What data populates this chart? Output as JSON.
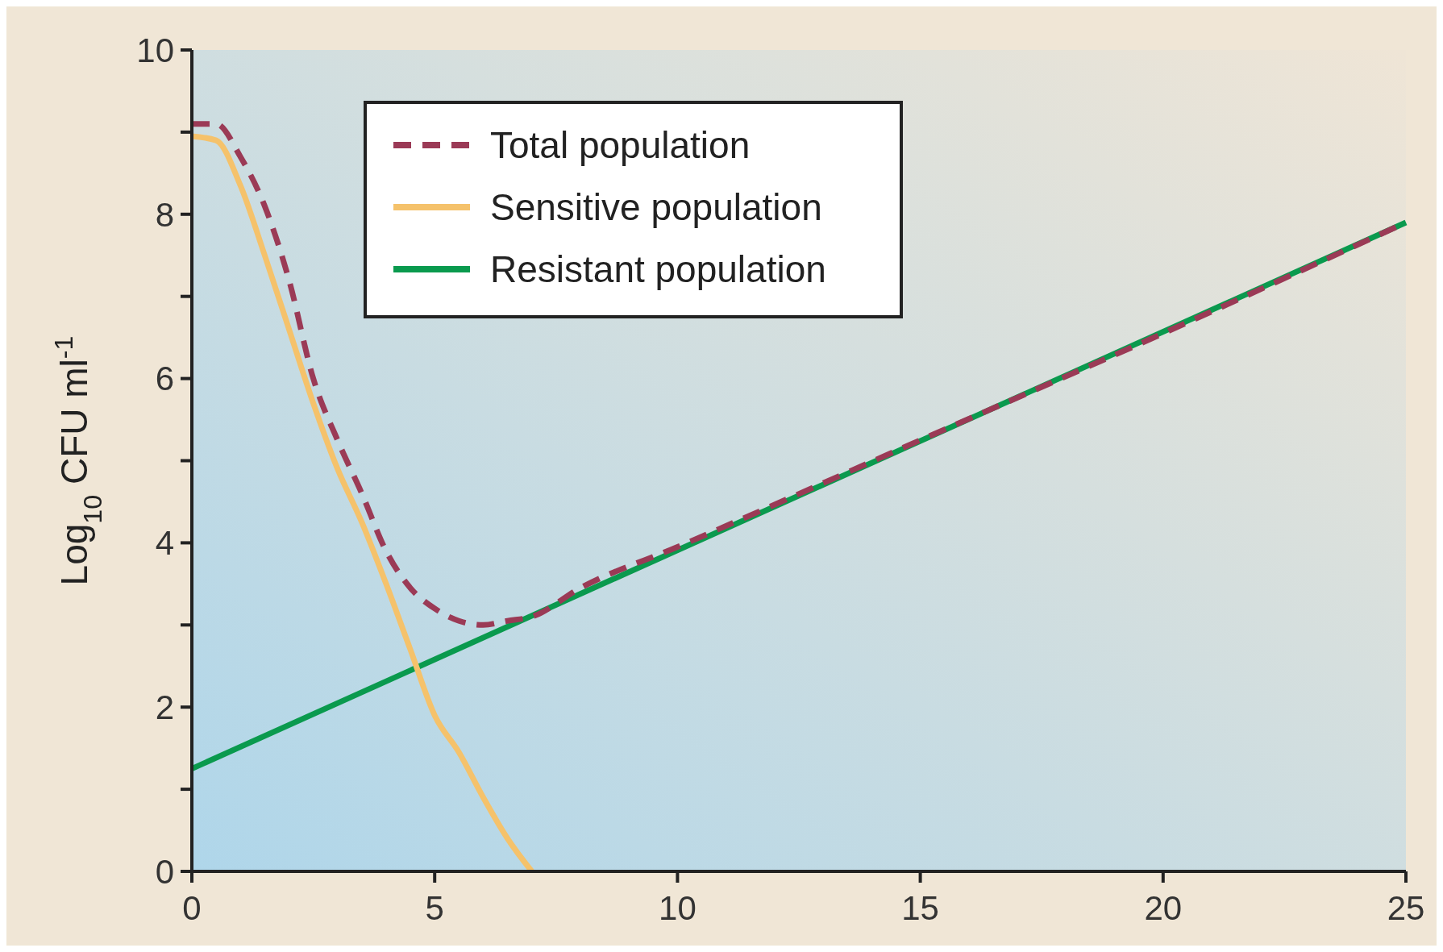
{
  "chart_data": {
    "type": "line",
    "ylabel": "Log$_{10}$ CFU ml$^{-1}$",
    "xlim": [
      0,
      25
    ],
    "xticks": [
      0,
      5,
      10,
      15,
      20,
      25
    ],
    "ylim": [
      0,
      10
    ],
    "yticks": [
      0,
      {
        "value": 1,
        "label": null
      },
      2,
      {
        "value": 3,
        "label": null
      },
      4,
      {
        "value": 5,
        "label": null
      },
      6,
      {
        "value": 7,
        "label": null
      },
      8,
      {
        "value": 9,
        "label": null
      },
      10
    ],
    "grid": false,
    "legend": "top left",
    "marker": "none",
    "series": [
      {
        "name": "Total population",
        "color": "#9b3a56",
        "line_style": "dashed",
        "x": [
          0,
          0.5,
          1,
          1.5,
          2,
          2.5,
          3,
          3.5,
          4,
          4.5,
          5,
          5.5,
          6,
          6.5,
          7,
          8,
          10,
          15,
          20,
          25
        ],
        "values": [
          9.1,
          9.1,
          8.7,
          8.1,
          7.2,
          6.0,
          5.25,
          4.6,
          3.9,
          3.45,
          3.2,
          3.05,
          3.0,
          3.05,
          3.1,
          3.45,
          3.95,
          5.25,
          6.55,
          7.9
        ]
      },
      {
        "name": "Sensitive population",
        "color": "#f5c26b",
        "line_style": "solid",
        "x": [
          0,
          0.5,
          1,
          1.5,
          2,
          2.5,
          3,
          3.5,
          4,
          4.5,
          5,
          5.5,
          6,
          6.5,
          7
        ],
        "values": [
          8.95,
          8.9,
          8.35,
          7.5,
          6.6,
          5.7,
          4.9,
          4.25,
          3.5,
          2.7,
          1.9,
          1.45,
          0.9,
          0.4,
          0
        ]
      },
      {
        "name": "Resistant population",
        "color": "#0a9a4e",
        "line_style": "solid",
        "x": [
          0,
          25
        ],
        "values": [
          1.25,
          7.9
        ]
      }
    ]
  }
}
